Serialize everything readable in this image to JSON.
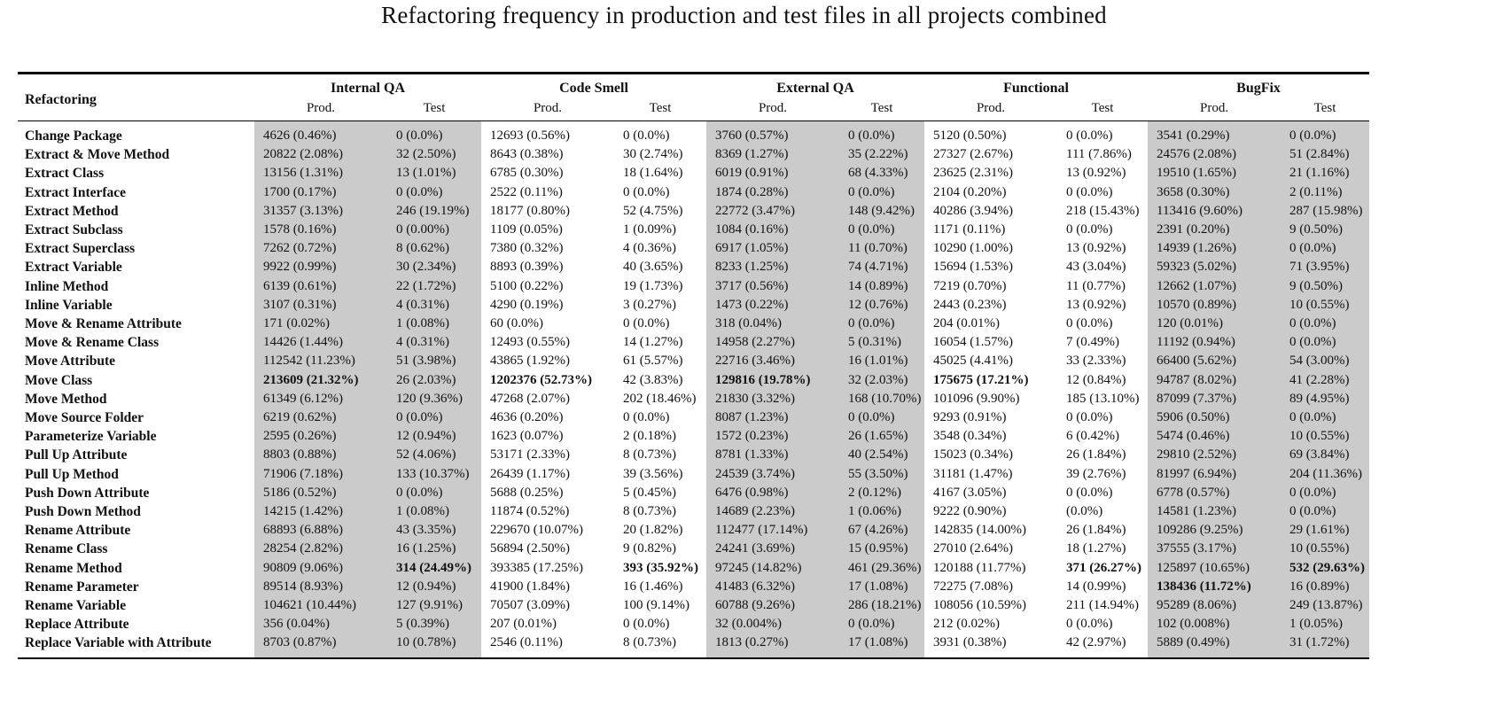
{
  "title": "Refactoring frequency in production and test files in all projects combined",
  "header": {
    "row_label": "Refactoring",
    "groups": [
      "Internal QA",
      "Code Smell",
      "External QA",
      "Functional",
      "BugFix"
    ],
    "sub": [
      "Prod.",
      "Test"
    ]
  },
  "shade_color": "#cbcbcb",
  "rows": [
    {
      "name": "Change Package",
      "cells": [
        "4626 (0.46%)",
        "0 (0.0%)",
        "12693 (0.56%)",
        "0 (0.0%)",
        "3760 (0.57%)",
        "0 (0.0%)",
        "5120 (0.50%)",
        "0 (0.0%)",
        "3541 (0.29%)",
        "0 (0.0%)"
      ]
    },
    {
      "name": "Extract & Move Method",
      "cells": [
        "20822 (2.08%)",
        "32 (2.50%)",
        "8643 (0.38%)",
        "30 (2.74%)",
        "8369 (1.27%)",
        "35 (2.22%)",
        "27327 (2.67%)",
        "111 (7.86%)",
        "24576 (2.08%)",
        "51 (2.84%)"
      ]
    },
    {
      "name": "Extract Class",
      "cells": [
        "13156 (1.31%)",
        "13 (1.01%)",
        "6785 (0.30%)",
        "18 (1.64%)",
        "6019 (0.91%)",
        "68 (4.33%)",
        "23625 (2.31%)",
        "13 (0.92%)",
        "19510 (1.65%)",
        "21 (1.16%)"
      ]
    },
    {
      "name": "Extract Interface",
      "cells": [
        "1700 (0.17%)",
        "0 (0.0%)",
        "2522 (0.11%)",
        "0 (0.0%)",
        "1874 (0.28%)",
        "0 (0.0%)",
        "2104 (0.20%)",
        "0 (0.0%)",
        "3658 (0.30%)",
        "2 (0.11%)"
      ]
    },
    {
      "name": "Extract Method",
      "cells": [
        "31357 (3.13%)",
        "246 (19.19%)",
        "18177 (0.80%)",
        "52 (4.75%)",
        "22772 (3.47%)",
        "148 (9.42%)",
        "40286 (3.94%)",
        "218 (15.43%)",
        "113416 (9.60%)",
        "287 (15.98%)"
      ]
    },
    {
      "name": "Extract Subclass",
      "cells": [
        "1578 (0.16%)",
        "0 (0.00%)",
        "1109 (0.05%)",
        "1 (0.09%)",
        "1084 (0.16%)",
        "0 (0.0%)",
        "1171 (0.11%)",
        "0 (0.0%)",
        "2391 (0.20%)",
        "9 (0.50%)"
      ]
    },
    {
      "name": "Extract Superclass",
      "cells": [
        "7262 (0.72%)",
        "8 (0.62%)",
        "7380 (0.32%)",
        "4 (0.36%)",
        "6917 (1.05%)",
        "11 (0.70%)",
        "10290 (1.00%)",
        "13 (0.92%)",
        "14939 (1.26%)",
        "0 (0.0%)"
      ]
    },
    {
      "name": "Extract Variable",
      "cells": [
        "9922 (0.99%)",
        "30 (2.34%)",
        "8893 (0.39%)",
        "40 (3.65%)",
        "8233 (1.25%)",
        "74 (4.71%)",
        "15694 (1.53%)",
        "43 (3.04%)",
        "59323 (5.02%)",
        "71 (3.95%)"
      ]
    },
    {
      "name": "Inline Method",
      "cells": [
        "6139 (0.61%)",
        "22 (1.72%)",
        "5100 (0.22%)",
        "19 (1.73%)",
        "3717 (0.56%)",
        "14 (0.89%)",
        "7219 (0.70%)",
        "11 (0.77%)",
        "12662 (1.07%)",
        "9 (0.50%)"
      ]
    },
    {
      "name": "Inline Variable",
      "cells": [
        "3107 (0.31%)",
        "4 (0.31%)",
        "4290 (0.19%)",
        "3 (0.27%)",
        "1473 (0.22%)",
        "12 (0.76%)",
        "2443 (0.23%)",
        "13 (0.92%)",
        "10570 (0.89%)",
        "10 (0.55%)"
      ]
    },
    {
      "name": "Move & Rename Attribute",
      "cells": [
        "171 (0.02%)",
        "1 (0.08%)",
        "60 (0.0%)",
        "0 (0.0%)",
        "318 (0.04%)",
        "0 (0.0%)",
        "204 (0.01%)",
        "0 (0.0%)",
        "120 (0.01%)",
        "0 (0.0%)"
      ]
    },
    {
      "name": "Move & Rename Class",
      "cells": [
        "14426 (1.44%)",
        "4 (0.31%)",
        "12493 (0.55%)",
        "14 (1.27%)",
        "14958 (2.27%)",
        "5 (0.31%)",
        "16054 (1.57%)",
        "7 (0.49%)",
        "11192 (0.94%)",
        "0 (0.0%)"
      ]
    },
    {
      "name": "Move Attribute",
      "cells": [
        "112542 (11.23%)",
        "51 (3.98%)",
        "43865 (1.92%)",
        "61 (5.57%)",
        "22716 (3.46%)",
        "16 (1.01%)",
        "45025 (4.41%)",
        "33 (2.33%)",
        "66400 (5.62%)",
        "54 (3.00%)"
      ]
    },
    {
      "name": "Move Class",
      "cells": [
        "213609 (21.32%)",
        "26 (2.03%)",
        "1202376 (52.73%)",
        "42 (3.83%)",
        "129816 (19.78%)",
        "32 (2.03%)",
        "175675 (17.21%)",
        "12 (0.84%)",
        "94787 (8.02%)",
        "41 (2.28%)"
      ]
    },
    {
      "name": "Move Method",
      "cells": [
        "61349 (6.12%)",
        "120 (9.36%)",
        "47268 (2.07%)",
        "202 (18.46%)",
        "21830 (3.32%)",
        "168 (10.70%)",
        "101096 (9.90%)",
        "185 (13.10%)",
        "87099 (7.37%)",
        "89 (4.95%)"
      ]
    },
    {
      "name": "Move Source Folder",
      "cells": [
        "6219 (0.62%)",
        "0 (0.0%)",
        "4636 (0.20%)",
        "0 (0.0%)",
        "8087 (1.23%)",
        "0 (0.0%)",
        "9293 (0.91%)",
        "0 (0.0%)",
        "5906 (0.50%)",
        "0 (0.0%)"
      ]
    },
    {
      "name": "Parameterize Variable",
      "cells": [
        "2595 (0.26%)",
        "12 (0.94%)",
        "1623 (0.07%)",
        "2 (0.18%)",
        "1572 (0.23%)",
        "26 (1.65%)",
        "3548 (0.34%)",
        "6 (0.42%)",
        "5474 (0.46%)",
        "10 (0.55%)"
      ]
    },
    {
      "name": "Pull Up Attribute",
      "cells": [
        "8803 (0.88%)",
        "52 (4.06%)",
        "53171 (2.33%)",
        "8 (0.73%)",
        "8781 (1.33%)",
        "40 (2.54%)",
        "15023 (0.34%)",
        "26 (1.84%)",
        "29810 (2.52%)",
        "69 (3.84%)"
      ]
    },
    {
      "name": "Pull Up Method",
      "cells": [
        "71906 (7.18%)",
        "133 (10.37%)",
        "26439 (1.17%)",
        "39 (3.56%)",
        "24539 (3.74%)",
        "55 (3.50%)",
        "31181 (1.47%)",
        "39 (2.76%)",
        "81997 (6.94%)",
        "204 (11.36%)"
      ]
    },
    {
      "name": "Push Down Attribute",
      "cells": [
        "5186 (0.52%)",
        "0 (0.0%)",
        "5688 (0.25%)",
        "5 (0.45%)",
        "6476 (0.98%)",
        "2 (0.12%)",
        "4167 (3.05%)",
        "0 (0.0%)",
        "6778 (0.57%)",
        "0 (0.0%)"
      ]
    },
    {
      "name": "Push Down Method",
      "cells": [
        "14215 (1.42%)",
        "1 (0.08%)",
        "11874 (0.52%)",
        "8 (0.73%)",
        "14689 (2.23%)",
        "1 (0.06%)",
        "9222 (0.90%)",
        "(0.0%)",
        "14581 (1.23%)",
        "0 (0.0%)"
      ]
    },
    {
      "name": "Rename Attribute",
      "cells": [
        "68893 (6.88%)",
        "43 (3.35%)",
        "229670 (10.07%)",
        "20 (1.82%)",
        "112477 (17.14%)",
        "67 (4.26%)",
        "142835 (14.00%)",
        "26 (1.84%)",
        "109286 (9.25%)",
        "29 (1.61%)"
      ]
    },
    {
      "name": "Rename Class",
      "cells": [
        "28254 (2.82%)",
        "16 (1.25%)",
        "56894 (2.50%)",
        "9 (0.82%)",
        "24241 (3.69%)",
        "15 (0.95%)",
        "27010 (2.64%)",
        "18 (1.27%)",
        "37555 (3.17%)",
        "10 (0.55%)"
      ]
    },
    {
      "name": "Rename Method",
      "cells": [
        "90809 (9.06%)",
        "314 (24.49%)",
        "393385 (17.25%)",
        "393 (35.92%)",
        "97245 (14.82%)",
        "461 (29.36%)",
        "120188 (11.77%)",
        "371 (26.27%)",
        "125897 (10.65%)",
        "532 (29.63%)"
      ]
    },
    {
      "name": "Rename Parameter",
      "cells": [
        "89514 (8.93%)",
        "12 (0.94%)",
        "41900 (1.84%)",
        "16 (1.46%)",
        "41483 (6.32%)",
        "17 (1.08%)",
        "72275 (7.08%)",
        "14 (0.99%)",
        "138436 (11.72%)",
        "16 (0.89%)"
      ]
    },
    {
      "name": "Rename Variable",
      "cells": [
        "104621 (10.44%)",
        "127 (9.91%)",
        "70507 (3.09%)",
        "100 (9.14%)",
        "60788 (9.26%)",
        "286 (18.21%)",
        "108056 (10.59%)",
        "211 (14.94%)",
        "95289 (8.06%)",
        "249 (13.87%)"
      ]
    },
    {
      "name": "Replace Attribute",
      "cells": [
        "356 (0.04%)",
        "5 (0.39%)",
        "207 (0.01%)",
        "0 (0.0%)",
        "32 (0.004%)",
        "0 (0.0%)",
        "212 (0.02%)",
        "0 (0.0%)",
        "102 (0.008%)",
        "1 (0.05%)"
      ]
    },
    {
      "name": "Replace Variable with Attribute",
      "cells": [
        "8703 (0.87%)",
        "10 (0.78%)",
        "2546 (0.11%)",
        "8 (0.73%)",
        "1813 (0.27%)",
        "17 (1.08%)",
        "3931 (0.38%)",
        "42 (2.97%)",
        "5889 (0.49%)",
        "31 (1.72%)"
      ]
    }
  ],
  "bold_cells": [
    [
      13,
      0
    ],
    [
      13,
      2
    ],
    [
      13,
      4
    ],
    [
      13,
      6
    ],
    [
      23,
      1
    ],
    [
      23,
      3
    ],
    [
      23,
      7
    ],
    [
      23,
      9
    ],
    [
      24,
      8
    ]
  ]
}
